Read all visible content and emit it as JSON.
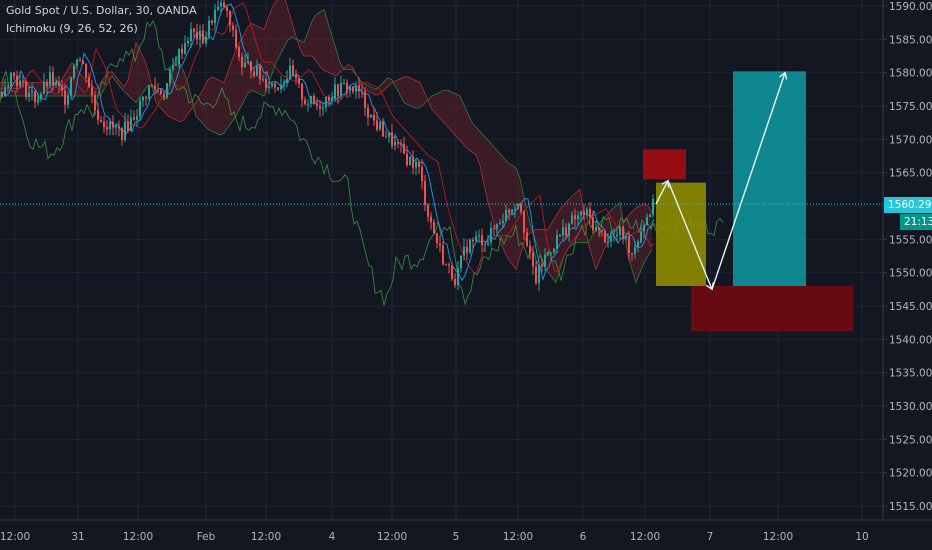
{
  "legend": {
    "symbol": "Gold Spot / U.S. Dollar, 30, OANDA",
    "indicator": "Ichimoku (9, 26, 52, 26)"
  },
  "colors": {
    "background": "#131722",
    "grid": "#1f2433",
    "up": "#26a69a",
    "down": "#ef5350",
    "axis_text": "#b2b5be",
    "last_price": "#26c6da",
    "countdown": "#009688",
    "cloud_bear": "#5d1f28",
    "cloud_bull": "#1e4a2a",
    "chikou": "#4caf50",
    "tenkan": "#2196f3",
    "kijun": "#b71c1c",
    "box_red": "#9c0c12",
    "box_olive": "#8e8c00",
    "box_teal": "#0e9aa0",
    "box_darkred": "#6b0a12"
  },
  "chart_data": {
    "type": "candlestick",
    "symbol": "Gold Spot / U.S. Dollar",
    "interval": "30",
    "source": "OANDA",
    "y_axis_ticks": [
      "1590.000",
      "1585.000",
      "1580.000",
      "1575.000",
      "1570.000",
      "1565.000",
      "1560.000",
      "1555.000",
      "1550.000",
      "1545.000",
      "1540.000",
      "1535.000",
      "1530.000",
      "1525.000",
      "1520.000",
      "1515.000"
    ],
    "y_range": [
      1512.5,
      1591.5
    ],
    "x_axis_ticks": [
      "12:00",
      "31",
      "12:00",
      "Feb",
      "12:00",
      "4",
      "12:00",
      "5",
      "12:00",
      "6",
      "12:00",
      "7",
      "12:00",
      "10"
    ],
    "last_price": "1560.296",
    "countdown": "21:13",
    "indicator": "Ichimoku (9, 26, 52, 26)",
    "price_path": [
      [
        0,
        1577
      ],
      [
        12,
        1580
      ],
      [
        22,
        1578
      ],
      [
        36,
        1576
      ],
      [
        50,
        1579
      ],
      [
        66,
        1576
      ],
      [
        76,
        1583
      ],
      [
        86,
        1580
      ],
      [
        96,
        1574
      ],
      [
        108,
        1572
      ],
      [
        122,
        1571
      ],
      [
        136,
        1574
      ],
      [
        150,
        1578
      ],
      [
        164,
        1577
      ],
      [
        176,
        1582
      ],
      [
        190,
        1586
      ],
      [
        204,
        1585
      ],
      [
        214,
        1589
      ],
      [
        224,
        1590
      ],
      [
        232,
        1586
      ],
      [
        242,
        1581
      ],
      [
        252,
        1581
      ],
      [
        262,
        1579
      ],
      [
        276,
        1578
      ],
      [
        290,
        1580
      ],
      [
        304,
        1576
      ],
      [
        318,
        1575
      ],
      [
        332,
        1577
      ],
      [
        346,
        1578
      ],
      [
        360,
        1577
      ],
      [
        372,
        1573
      ],
      [
        384,
        1571
      ],
      [
        396,
        1569
      ],
      [
        408,
        1567
      ],
      [
        418,
        1566
      ],
      [
        428,
        1559
      ],
      [
        436,
        1555
      ],
      [
        446,
        1551
      ],
      [
        456,
        1549
      ],
      [
        466,
        1554
      ],
      [
        476,
        1555
      ],
      [
        488,
        1555
      ],
      [
        500,
        1558
      ],
      [
        512,
        1560
      ],
      [
        520,
        1561
      ],
      [
        528,
        1553
      ],
      [
        536,
        1549
      ],
      [
        544,
        1552
      ],
      [
        552,
        1554
      ],
      [
        562,
        1556
      ],
      [
        574,
        1558
      ],
      [
        586,
        1559
      ],
      [
        598,
        1556
      ],
      [
        610,
        1555
      ],
      [
        622,
        1556
      ],
      [
        632,
        1553
      ],
      [
        642,
        1557
      ],
      [
        652,
        1560
      ]
    ],
    "projection": {
      "boxes": [
        {
          "name": "upper-resistance",
          "price_top": 1568.5,
          "price_bottom": 1564.0
        },
        {
          "name": "first-leg-range",
          "price_top": 1563.5,
          "price_bottom": 1548.0
        },
        {
          "name": "support-zone",
          "price_top": 1548.0,
          "price_bottom": 1541.2
        },
        {
          "name": "target-range",
          "price_top": 1580.2,
          "price_bottom": 1548.0
        }
      ],
      "arrow_path": [
        [
          656,
          1560.3
        ],
        [
          668,
          1563.8
        ],
        [
          712,
          1547.5
        ],
        [
          785,
          1580.0
        ]
      ]
    }
  }
}
